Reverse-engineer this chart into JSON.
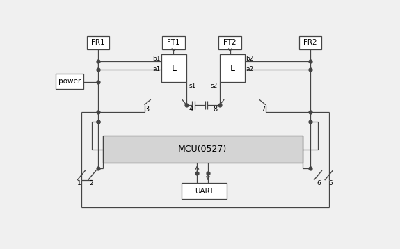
{
  "bg_color": "#f0f0f0",
  "line_color": "#444444",
  "box_fill": "#ffffff",
  "mcu_fill": "#d4d4d4",
  "figsize": [
    5.75,
    3.58
  ],
  "dpi": 100,
  "fr1": [
    68,
    12,
    42,
    24
  ],
  "ft1": [
    208,
    12,
    42,
    24
  ],
  "ft2": [
    313,
    12,
    42,
    24
  ],
  "fr2": [
    462,
    12,
    42,
    24
  ],
  "power": [
    10,
    82,
    52,
    28
  ],
  "l1": [
    207,
    46,
    46,
    52
  ],
  "l2": [
    315,
    46,
    46,
    52
  ],
  "mcu": [
    98,
    198,
    370,
    50
  ],
  "uart": [
    244,
    286,
    84,
    30
  ]
}
